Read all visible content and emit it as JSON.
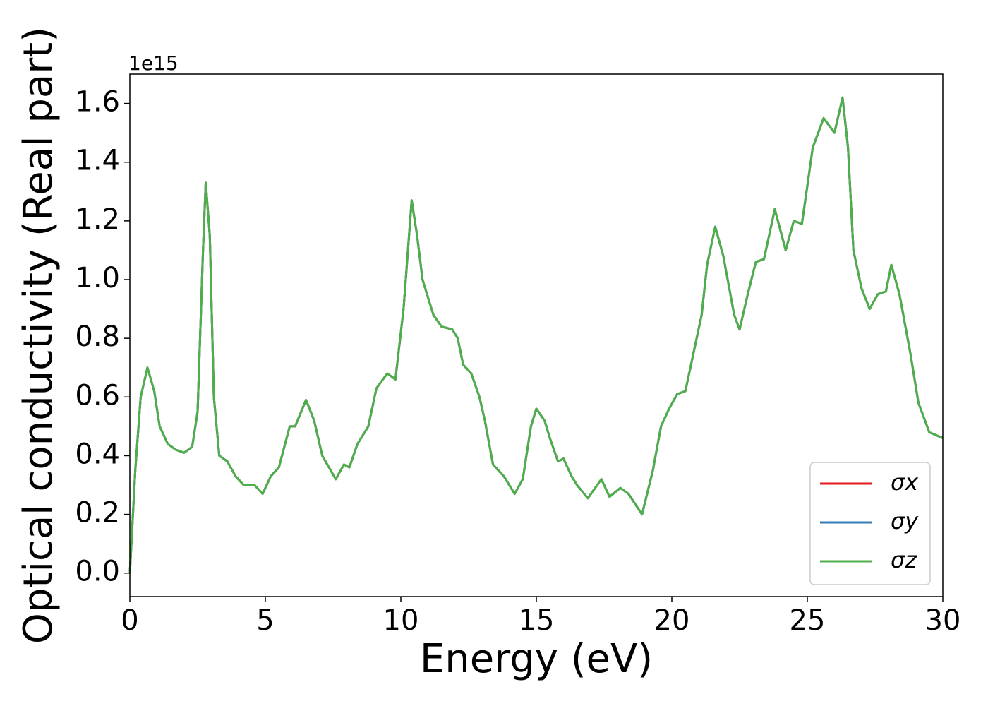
{
  "chart_data": {
    "type": "line",
    "xlabel": "Energy (eV)",
    "ylabel": "Optical conductivity (Real part)",
    "y_offset_label": "1e15",
    "xlim": [
      0,
      30
    ],
    "xticks": [
      0,
      5,
      10,
      15,
      20,
      25,
      30
    ],
    "ylim": [
      -0.08,
      1.7
    ],
    "yticks": [
      {
        "value": 0,
        "label": "0.0"
      },
      0.2,
      0.4,
      0.6,
      0.8,
      {
        "value": 1,
        "label": "1.0"
      },
      1.2,
      1.4,
      1.6
    ],
    "grid": false,
    "legend": "lower right",
    "x": [
      0,
      0.2,
      0.4,
      0.65,
      0.9,
      1.1,
      1.4,
      1.7,
      2.0,
      2.3,
      2.5,
      2.7,
      2.8,
      2.95,
      3.1,
      3.3,
      3.6,
      3.9,
      4.2,
      4.6,
      4.9,
      5.2,
      5.5,
      5.9,
      6.1,
      6.5,
      6.8,
      7.1,
      7.6,
      7.9,
      8.1,
      8.4,
      8.8,
      9.1,
      9.5,
      9.8,
      10.1,
      10.4,
      10.6,
      10.8,
      11.2,
      11.5,
      11.9,
      12.1,
      12.3,
      12.6,
      12.9,
      13.1,
      13.4,
      13.8,
      14.2,
      14.5,
      14.8,
      15.0,
      15.3,
      15.5,
      15.8,
      16.0,
      16.3,
      16.5,
      16.9,
      17.4,
      17.7,
      18.1,
      18.4,
      18.9,
      19.3,
      19.6,
      19.9,
      20.2,
      20.5,
      20.8,
      21.1,
      21.3,
      21.6,
      21.9,
      22.3,
      22.5,
      22.8,
      23.1,
      23.4,
      23.8,
      24.2,
      24.5,
      24.8,
      25.2,
      25.6,
      26.0,
      26.3,
      26.5,
      26.7,
      27.0,
      27.3,
      27.6,
      27.9,
      28.1,
      28.4,
      28.8,
      29.1,
      29.5,
      30
    ],
    "series": [
      {
        "name": "σx",
        "color": "#e41a1c",
        "values": [
          0,
          0.35,
          0.6,
          0.7,
          0.62,
          0.5,
          0.44,
          0.42,
          0.41,
          0.43,
          0.55,
          1.1,
          1.33,
          1.15,
          0.6,
          0.4,
          0.38,
          0.33,
          0.3,
          0.3,
          0.27,
          0.33,
          0.36,
          0.5,
          0.5,
          0.59,
          0.52,
          0.4,
          0.32,
          0.37,
          0.36,
          0.44,
          0.5,
          0.63,
          0.68,
          0.66,
          0.9,
          1.27,
          1.15,
          1.0,
          0.88,
          0.84,
          0.83,
          0.8,
          0.71,
          0.68,
          0.6,
          0.52,
          0.37,
          0.33,
          0.27,
          0.32,
          0.5,
          0.56,
          0.52,
          0.46,
          0.38,
          0.39,
          0.33,
          0.3,
          0.255,
          0.32,
          0.26,
          0.29,
          0.27,
          0.2,
          0.35,
          0.5,
          0.56,
          0.61,
          0.62,
          0.75,
          0.88,
          1.05,
          1.18,
          1.08,
          0.88,
          0.83,
          0.95,
          1.06,
          1.07,
          1.24,
          1.1,
          1.2,
          1.19,
          1.45,
          1.55,
          1.5,
          1.62,
          1.45,
          1.1,
          0.97,
          0.9,
          0.95,
          0.96,
          1.05,
          0.95,
          0.75,
          0.58,
          0.48,
          0.46
        ]
      },
      {
        "name": "σy",
        "color": "#377eb8",
        "values": [
          0,
          0.35,
          0.6,
          0.7,
          0.62,
          0.5,
          0.44,
          0.42,
          0.41,
          0.43,
          0.55,
          1.1,
          1.33,
          1.15,
          0.6,
          0.4,
          0.38,
          0.33,
          0.3,
          0.3,
          0.27,
          0.33,
          0.36,
          0.5,
          0.5,
          0.59,
          0.52,
          0.4,
          0.32,
          0.37,
          0.36,
          0.44,
          0.5,
          0.63,
          0.68,
          0.66,
          0.9,
          1.27,
          1.15,
          1.0,
          0.88,
          0.84,
          0.83,
          0.8,
          0.71,
          0.68,
          0.6,
          0.52,
          0.37,
          0.33,
          0.27,
          0.32,
          0.5,
          0.56,
          0.52,
          0.46,
          0.38,
          0.39,
          0.33,
          0.3,
          0.255,
          0.32,
          0.26,
          0.29,
          0.27,
          0.2,
          0.35,
          0.5,
          0.56,
          0.61,
          0.62,
          0.75,
          0.88,
          1.05,
          1.18,
          1.08,
          0.88,
          0.83,
          0.95,
          1.06,
          1.07,
          1.24,
          1.1,
          1.2,
          1.19,
          1.45,
          1.55,
          1.5,
          1.62,
          1.45,
          1.1,
          0.97,
          0.9,
          0.95,
          0.96,
          1.05,
          0.95,
          0.75,
          0.58,
          0.48,
          0.46
        ]
      },
      {
        "name": "σz",
        "color": "#4daf4a",
        "values": [
          0,
          0.35,
          0.6,
          0.7,
          0.62,
          0.5,
          0.44,
          0.42,
          0.41,
          0.43,
          0.55,
          1.1,
          1.33,
          1.15,
          0.6,
          0.4,
          0.38,
          0.33,
          0.3,
          0.3,
          0.27,
          0.33,
          0.36,
          0.5,
          0.5,
          0.59,
          0.52,
          0.4,
          0.32,
          0.37,
          0.36,
          0.44,
          0.5,
          0.63,
          0.68,
          0.66,
          0.9,
          1.27,
          1.15,
          1.0,
          0.88,
          0.84,
          0.83,
          0.8,
          0.71,
          0.68,
          0.6,
          0.52,
          0.37,
          0.33,
          0.27,
          0.32,
          0.5,
          0.56,
          0.52,
          0.46,
          0.38,
          0.39,
          0.33,
          0.3,
          0.255,
          0.32,
          0.26,
          0.29,
          0.27,
          0.2,
          0.35,
          0.5,
          0.56,
          0.61,
          0.62,
          0.75,
          0.88,
          1.05,
          1.18,
          1.08,
          0.88,
          0.83,
          0.95,
          1.06,
          1.07,
          1.24,
          1.1,
          1.2,
          1.19,
          1.45,
          1.55,
          1.5,
          1.62,
          1.45,
          1.1,
          0.97,
          0.9,
          0.95,
          0.96,
          1.05,
          0.95,
          0.75,
          0.58,
          0.48,
          0.46
        ]
      }
    ]
  }
}
